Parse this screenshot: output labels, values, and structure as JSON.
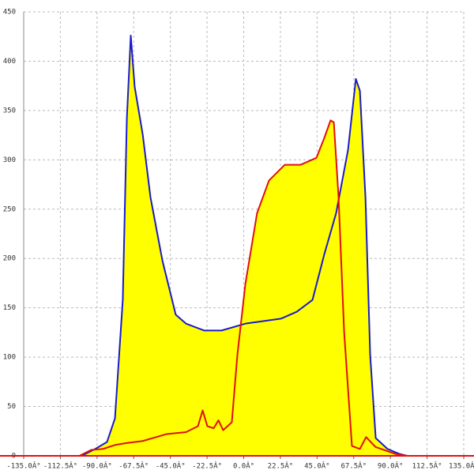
{
  "chart_data": {
    "type": "area",
    "fill_color": "#ffff00",
    "xlim": [
      -135,
      135
    ],
    "ylim": [
      0,
      450
    ],
    "xticks": [
      {
        "value": -135,
        "label": "-135.0Â°"
      },
      {
        "value": -112.5,
        "label": "-112.5Â°"
      },
      {
        "value": -90,
        "label": "-90.0Â°"
      },
      {
        "value": -67.5,
        "label": "-67.5Â°"
      },
      {
        "value": -45,
        "label": "-45.0Â°"
      },
      {
        "value": -22.5,
        "label": "-22.5Â°"
      },
      {
        "value": 0,
        "label": "0.0Â°"
      },
      {
        "value": 22.5,
        "label": "22.5Â°"
      },
      {
        "value": 45,
        "label": "45.0Â°"
      },
      {
        "value": 67.5,
        "label": "67.5Â°"
      },
      {
        "value": 90,
        "label": "90.0Â°"
      },
      {
        "value": 112.5,
        "label": "112.5Â°"
      },
      {
        "value": 135,
        "label": "135.0Â°"
      }
    ],
    "yticks": [
      0,
      50,
      100,
      150,
      200,
      250,
      300,
      350,
      400,
      450
    ],
    "grid": true,
    "series": [
      {
        "color": "#1a1acc",
        "x": [
          -99.4,
          -91.1,
          -83.9,
          -79,
          -74.2,
          -71.7,
          -69.3,
          -66.9,
          -62,
          -57.2,
          -49.9,
          -41.7,
          -35.4,
          -24.2,
          -13.6,
          1,
          22.8,
          32.5,
          42.2,
          49.4,
          56.7,
          64,
          68.8,
          71.3,
          74.7,
          77.6,
          81,
          88.2,
          95.5,
          100.3
        ],
        "values": [
          0,
          7,
          14,
          38,
          158,
          342,
          426,
          374,
          326,
          262,
          198,
          143,
          134,
          127,
          127,
          134,
          139,
          146,
          158,
          204,
          246,
          310,
          382,
          370,
          262,
          102,
          18,
          7,
          2,
          0
        ]
      },
      {
        "color": "#e01010",
        "x": [
          -100.8,
          -93.6,
          -86.3,
          -79,
          -71.7,
          -62,
          -47.5,
          -35.4,
          -28.1,
          -25.2,
          -22.3,
          -18.4,
          -15.5,
          -12.6,
          -7.3,
          -3.9,
          1,
          8.2,
          15.5,
          25.2,
          34.9,
          44.6,
          49.4,
          53.3,
          55.3,
          58.2,
          61.6,
          66.4,
          71.3,
          75.1,
          80.9,
          93,
          100.3
        ],
        "values": [
          0,
          6,
          7,
          11,
          13,
          15,
          22,
          24,
          30,
          46,
          30,
          28,
          36,
          26,
          34,
          102,
          174,
          246,
          279,
          295,
          295,
          302,
          322,
          340,
          338,
          262,
          126,
          10,
          7,
          19,
          9,
          2,
          0
        ]
      }
    ]
  }
}
